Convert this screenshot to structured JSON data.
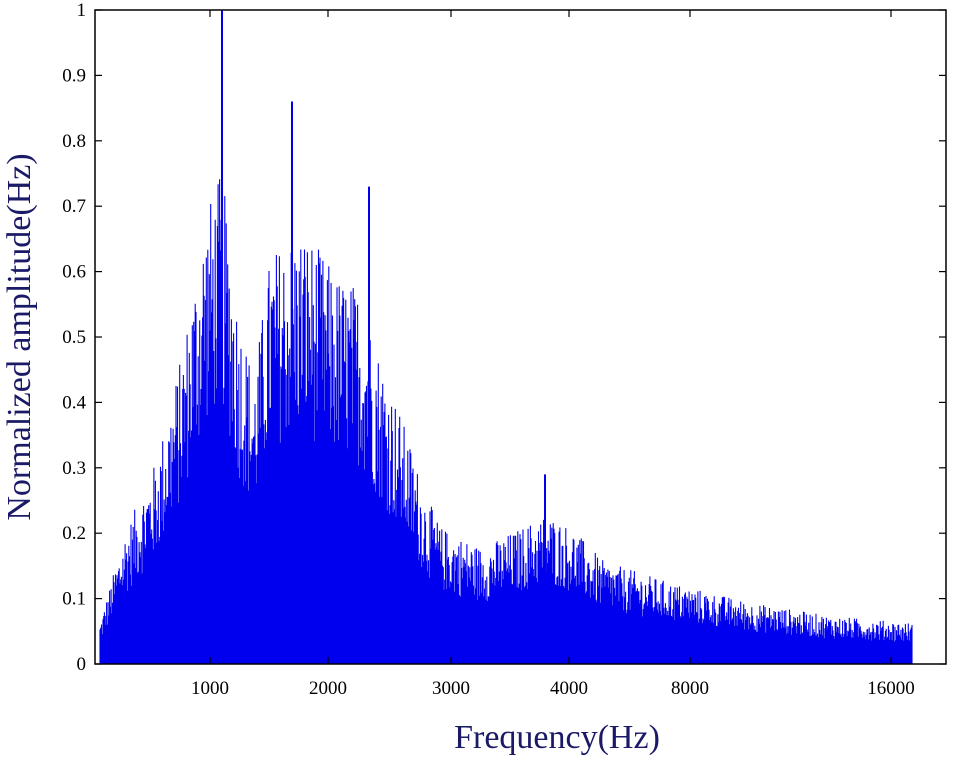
{
  "chart_data": {
    "type": "line",
    "title": "",
    "xlabel": "Frequency(Hz)",
    "ylabel": "Normalized amplitude(Hz)",
    "x_tick_labels": [
      "1000",
      "2000",
      "3000",
      "4000",
      "8000",
      "16000"
    ],
    "y_ticks": [
      0,
      0.1,
      0.2,
      0.3,
      0.4,
      0.5,
      0.6,
      0.7,
      0.8,
      0.9,
      1
    ],
    "y_tick_labels": [
      "0",
      "0.1",
      "0.2",
      "0.3",
      "0.4",
      "0.5",
      "0.6",
      "0.7",
      "0.8",
      "0.9",
      "1"
    ],
    "ylim": [
      0,
      1
    ],
    "grid": false,
    "legend": "none",
    "series_color": "#0000ee",
    "series": [
      {
        "description": "spectrum envelope (approximate upper values at each tick position)",
        "x_positions": [
          "start",
          "1000",
          "2000",
          "3000",
          "4000",
          "8000",
          "16000"
        ],
        "peak_values": [
          0.07,
          0.74,
          0.62,
          0.2,
          0.25,
          0.12,
          0.08
        ]
      }
    ],
    "notable_peaks": [
      {
        "near": "1000",
        "value": 1.0
      },
      {
        "near": "1000-2000",
        "value": 0.86
      },
      {
        "near": "2000",
        "value": 0.73
      },
      {
        "near": "3000-4000",
        "value": 0.29
      }
    ]
  }
}
